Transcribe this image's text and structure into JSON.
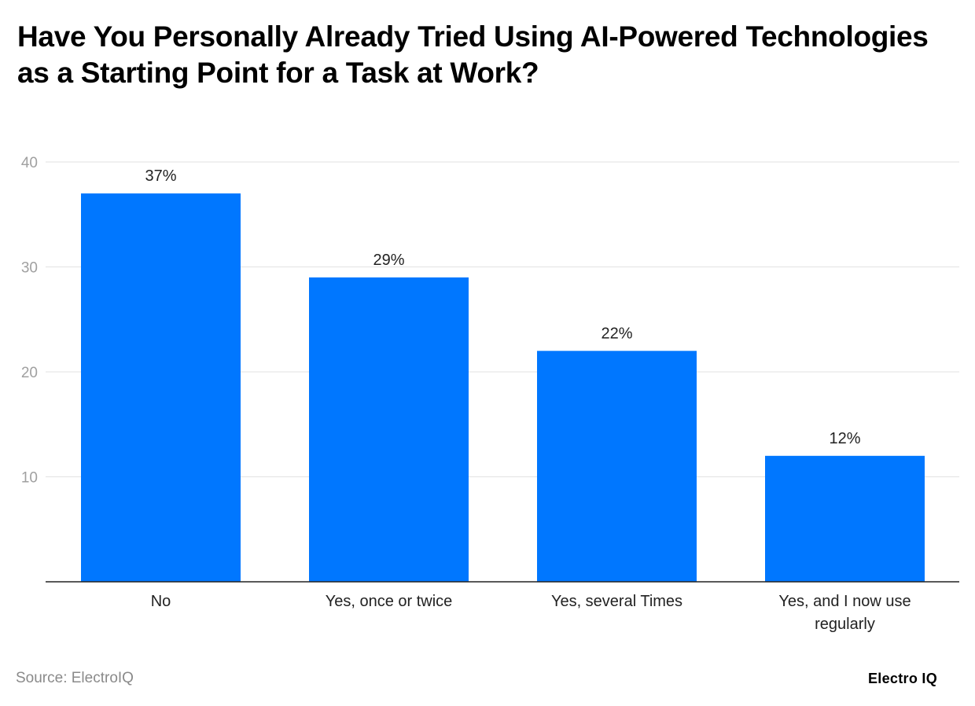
{
  "chart_data": {
    "type": "bar",
    "title": "Have You Personally Already Tried Using AI-Powered Technologies as a Starting Point for a Task at Work?",
    "categories": [
      "No",
      "Yes, once or twice",
      "Yes, several Times",
      "Yes, and I now use regularly"
    ],
    "category_lines": [
      [
        "No"
      ],
      [
        "Yes, once or twice"
      ],
      [
        "Yes, several Times"
      ],
      [
        "Yes, and I now use",
        "regularly"
      ]
    ],
    "values": [
      37,
      29,
      22,
      12
    ],
    "data_labels": [
      "37%",
      "29%",
      "22%",
      "12%"
    ],
    "xlabel": "",
    "ylabel": "",
    "ylim": [
      0,
      40
    ],
    "yticks": [
      10,
      20,
      30,
      40
    ],
    "grid": true,
    "bar_color": "#0077FF"
  },
  "source": "Source: ElectroIQ",
  "logo": "Electro IQ"
}
